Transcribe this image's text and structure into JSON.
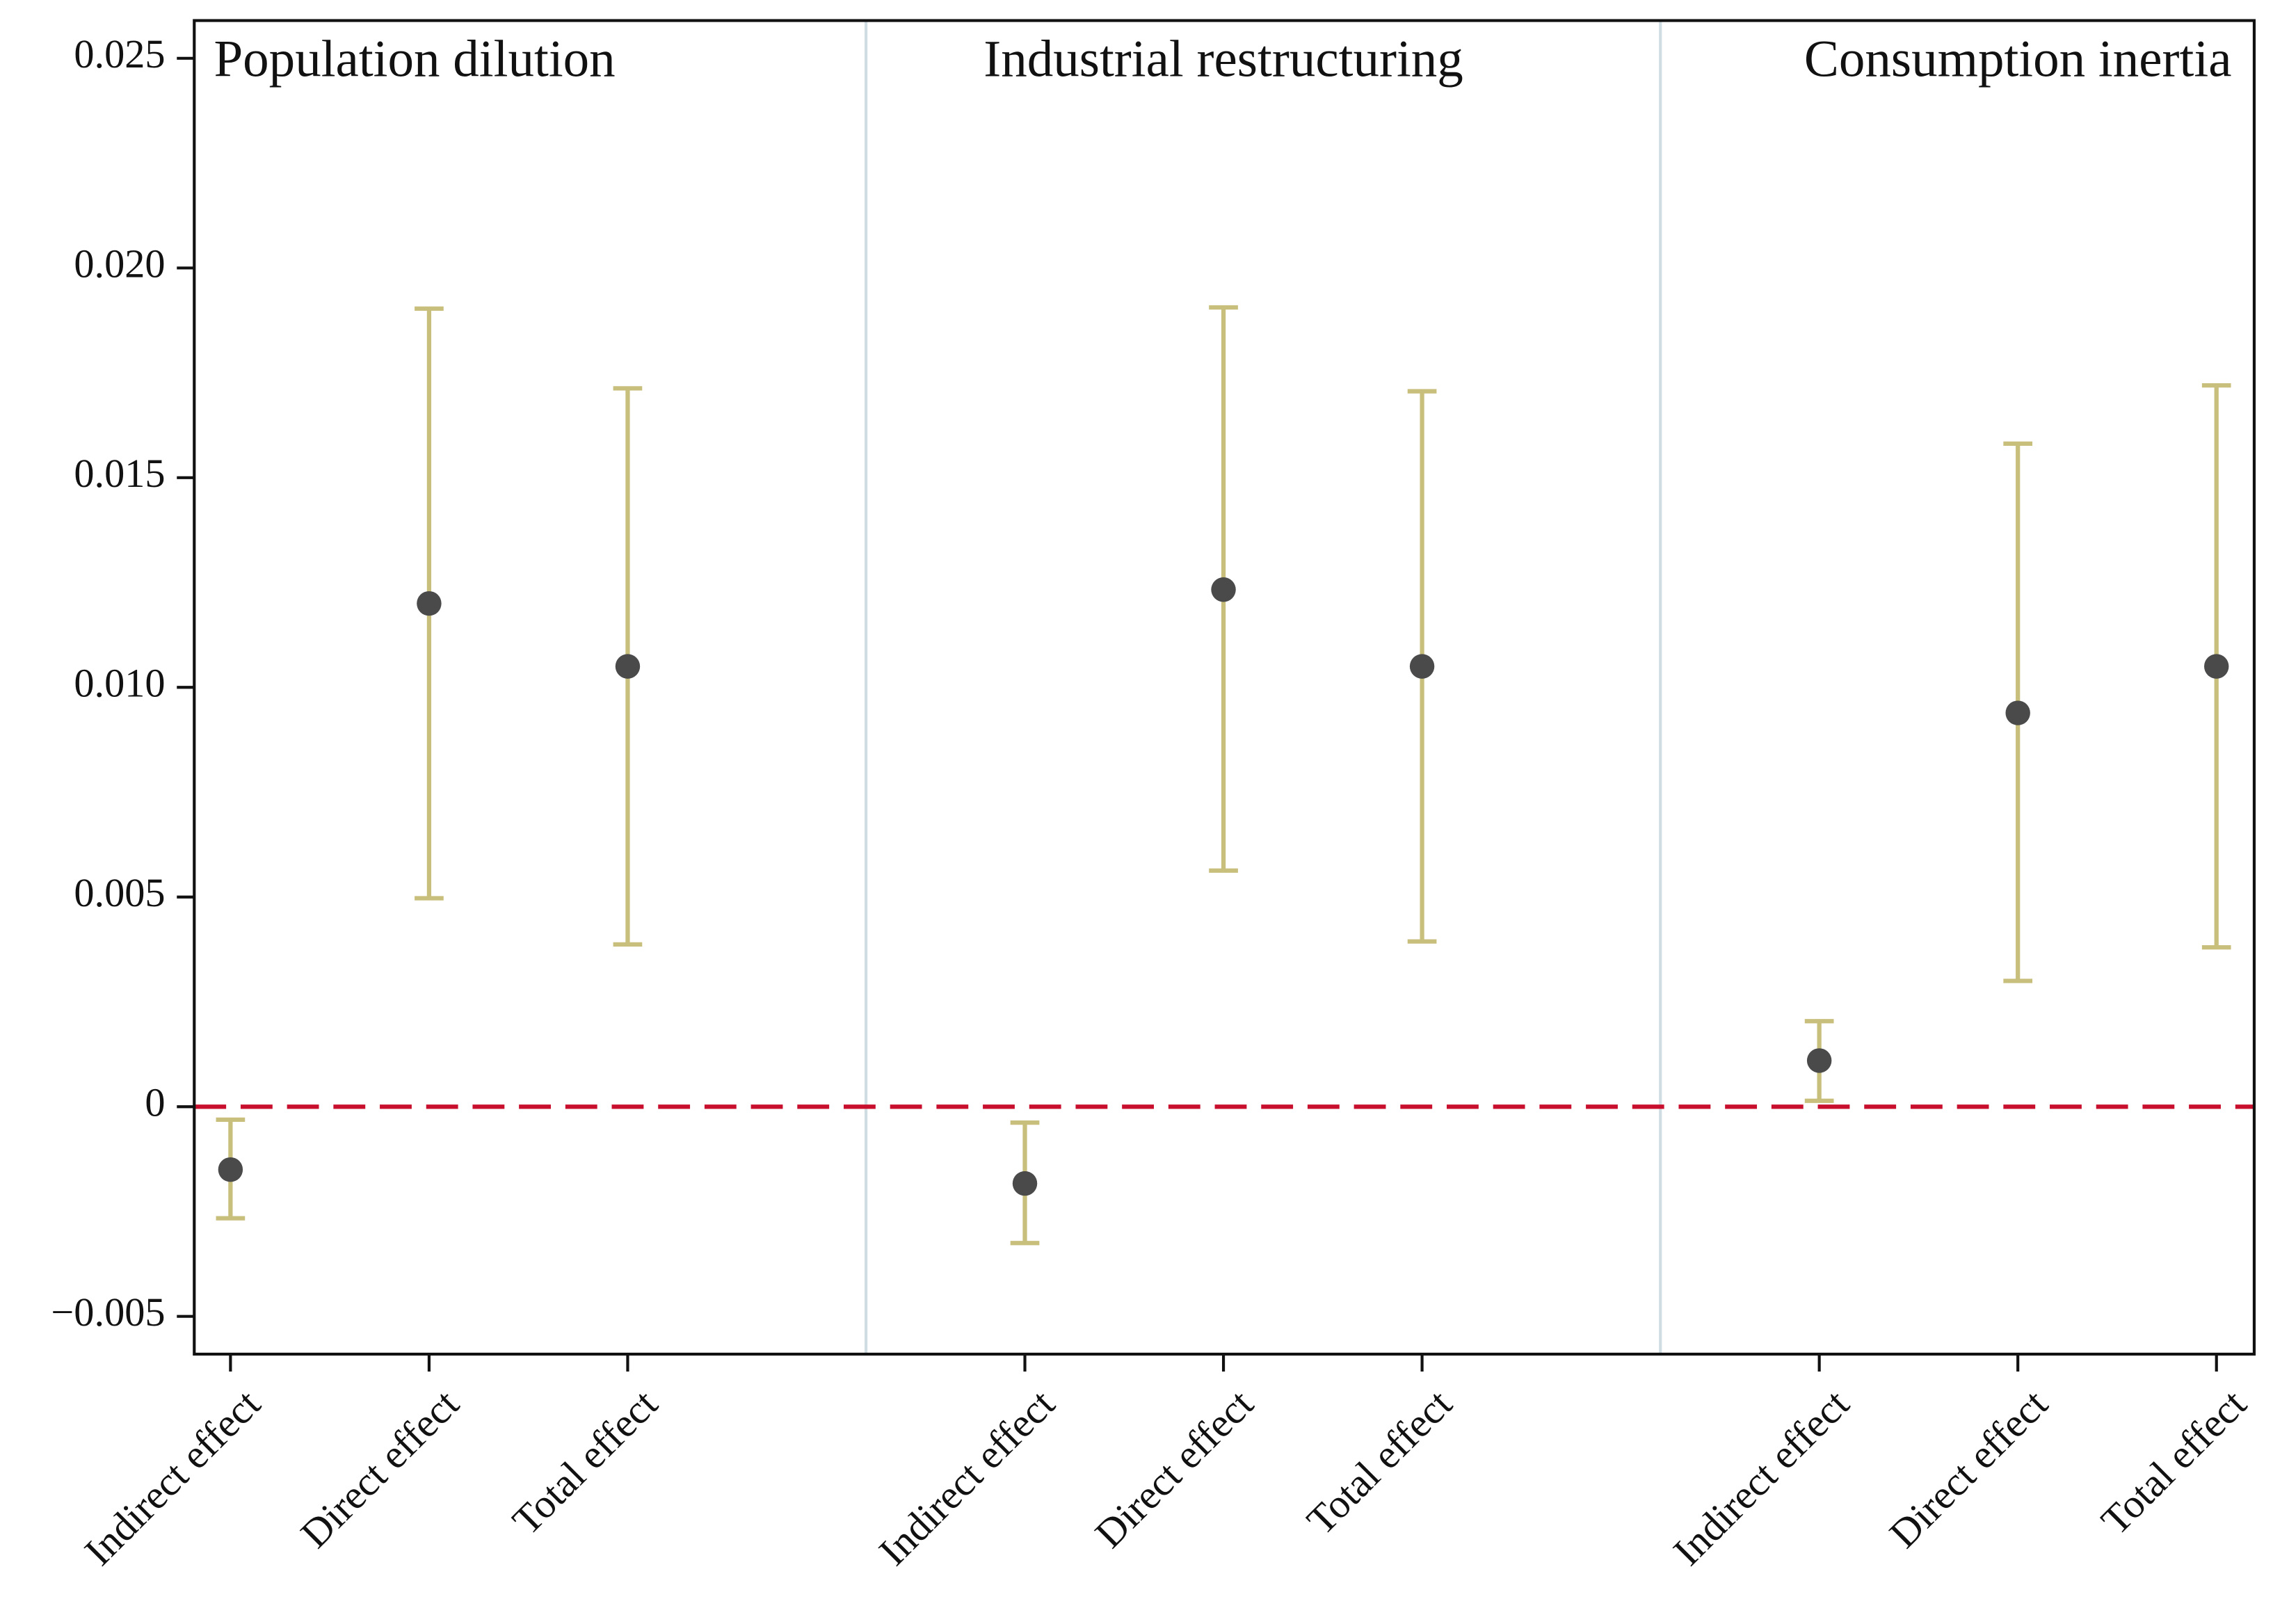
{
  "chart_data": {
    "type": "errorbar",
    "ylim": [
      -0.0059,
      0.0259
    ],
    "yticks": [
      {
        "value": -0.005,
        "label": "−0.005"
      },
      0,
      0.005,
      {
        "value": 0.01,
        "label": "0.010"
      },
      0.015,
      {
        "value": 0.02,
        "label": "0.020"
      },
      0.025
    ],
    "point_color": "#4a4a4a",
    "bar_color": "#c9bf7d",
    "reference_line": {
      "value": 0,
      "color": "#c8102e",
      "style": "dashed"
    },
    "panels": [
      {
        "title": "Population dilution",
        "categories": [
          "Indirect effect",
          "Direct effect",
          "Total effect"
        ],
        "values": [
          -0.0015,
          0.012,
          0.0105
        ],
        "lower": [
          -0.00266,
          0.00497,
          0.00387
        ],
        "upper": [
          -0.00031,
          0.01903,
          0.01713
        ]
      },
      {
        "title": "Industrial restructuring",
        "categories": [
          "Indirect effect",
          "Direct effect",
          "Total effect"
        ],
        "values": [
          -0.00183,
          0.01233,
          0.0105
        ],
        "lower": [
          -0.00325,
          0.00563,
          0.00394
        ],
        "upper": [
          -0.00038,
          0.01906,
          0.01706
        ]
      },
      {
        "title": "Consumption inertia",
        "categories": [
          "Indirect effect",
          "Direct effect",
          "Total effect"
        ],
        "values": [
          0.0011,
          0.00939,
          0.0105
        ],
        "lower": [
          0.00014,
          0.003,
          0.0038
        ],
        "upper": [
          0.00204,
          0.01581,
          0.0172
        ]
      }
    ]
  }
}
